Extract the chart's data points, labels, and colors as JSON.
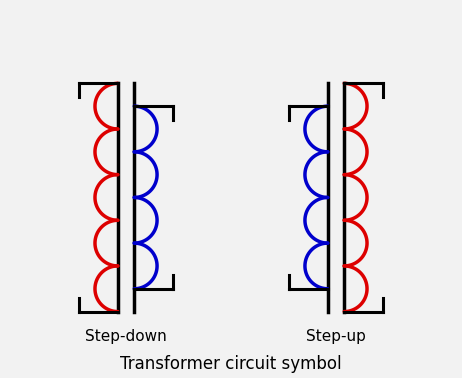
{
  "bg_color": "#f2f2f2",
  "title": "Transformer circuit symbol",
  "label_stepdown": "Step-down",
  "label_stepup": "Step-up",
  "title_fontsize": 12,
  "label_fontsize": 11,
  "line_color": "black",
  "coil_red": "#dd0000",
  "coil_blue": "#0000cc",
  "lw": 2.2,
  "coil_lw": 2.5,
  "n_large": 5,
  "n_small": 4
}
